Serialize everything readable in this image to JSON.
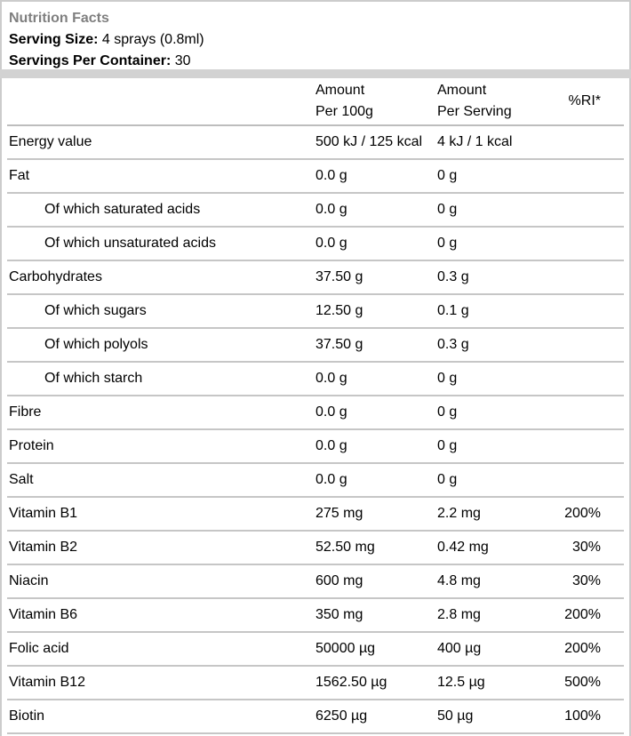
{
  "header": {
    "title": "Nutrition Facts",
    "serving_size_label": "Serving Size:",
    "serving_size_value": " 4 sprays (0.8ml)",
    "servings_per_container_label": "Servings Per Container:",
    "servings_per_container_value": " 30"
  },
  "table": {
    "header": {
      "col2_line1": "Amount",
      "col2_line2": "Per 100g",
      "col3_line1": "Amount",
      "col3_line2": "Per Serving",
      "col4": "%RI*"
    },
    "rows": [
      {
        "label": "Energy value",
        "indent": false,
        "per_100g": "500 kJ / 125 kcal",
        "per_serving": "4 kJ / 1 kcal",
        "ri": ""
      },
      {
        "label": "Fat",
        "indent": false,
        "per_100g": "0.0 g",
        "per_serving": "0 g",
        "ri": ""
      },
      {
        "label": "Of which saturated acids",
        "indent": true,
        "per_100g": "0.0 g",
        "per_serving": "0 g",
        "ri": ""
      },
      {
        "label": "Of which unsaturated acids",
        "indent": true,
        "per_100g": "0.0 g",
        "per_serving": "0 g",
        "ri": ""
      },
      {
        "label": "Carbohydrates",
        "indent": false,
        "per_100g": "37.50 g",
        "per_serving": "0.3 g",
        "ri": ""
      },
      {
        "label": "Of which sugars",
        "indent": true,
        "per_100g": "12.50 g",
        "per_serving": "0.1 g",
        "ri": ""
      },
      {
        "label": "Of which polyols",
        "indent": true,
        "per_100g": "37.50 g",
        "per_serving": "0.3 g",
        "ri": ""
      },
      {
        "label": "Of which starch",
        "indent": true,
        "per_100g": "0.0 g",
        "per_serving": "0 g",
        "ri": ""
      },
      {
        "label": "Fibre",
        "indent": false,
        "per_100g": "0.0 g",
        "per_serving": "0 g",
        "ri": ""
      },
      {
        "label": "Protein",
        "indent": false,
        "per_100g": "0.0 g",
        "per_serving": "0 g",
        "ri": ""
      },
      {
        "label": "Salt",
        "indent": false,
        "per_100g": "0.0 g",
        "per_serving": "0 g",
        "ri": ""
      },
      {
        "label": "Vitamin B1",
        "indent": false,
        "per_100g": "275 mg",
        "per_serving": "2.2 mg",
        "ri": "200%"
      },
      {
        "label": "Vitamin B2",
        "indent": false,
        "per_100g": "52.50 mg",
        "per_serving": "0.42 mg",
        "ri": "30%"
      },
      {
        "label": "Niacin",
        "indent": false,
        "per_100g": "600 mg",
        "per_serving": "4.8 mg",
        "ri": "30%"
      },
      {
        "label": "Vitamin B6",
        "indent": false,
        "per_100g": "350 mg",
        "per_serving": "2.8 mg",
        "ri": "200%"
      },
      {
        "label": "Folic acid",
        "indent": false,
        "per_100g": "50000 µg",
        "per_serving": "400 µg",
        "ri": "200%"
      },
      {
        "label": "Vitamin B12",
        "indent": false,
        "per_100g": "1562.50 µg",
        "per_serving": "12.5 µg",
        "ri": "500%"
      },
      {
        "label": "Biotin",
        "indent": false,
        "per_100g": "6250 µg",
        "per_serving": "50 µg",
        "ri": "100%"
      }
    ]
  },
  "colors": {
    "title_gray": "#7f7f7f",
    "border_gray": "#cccccc",
    "separator_band_gray": "#d2d2d2",
    "row_line_gray": "#c6c6c6",
    "text": "#000000",
    "background": "#ffffff"
  }
}
